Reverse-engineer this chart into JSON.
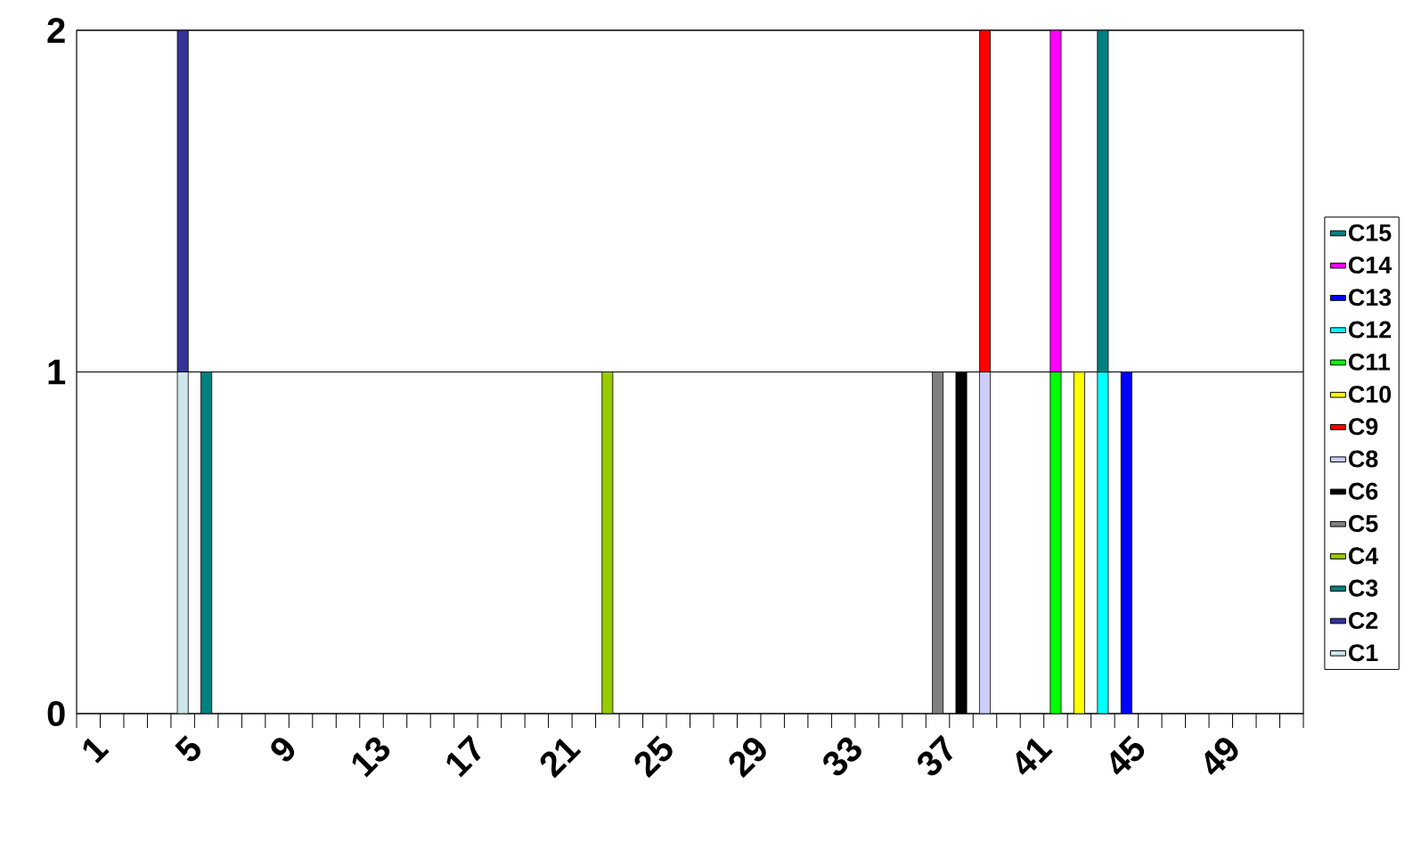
{
  "chart_data": {
    "type": "bar",
    "stacked": true,
    "grid": "y",
    "legend": "right",
    "ylim": [
      0,
      2
    ],
    "yticks": [
      0,
      1,
      2
    ],
    "categories": [
      "1",
      null,
      null,
      null,
      "5",
      null,
      null,
      null,
      "9",
      null,
      null,
      null,
      "13",
      null,
      null,
      null,
      "17",
      null,
      null,
      null,
      "21",
      null,
      null,
      null,
      "25",
      null,
      null,
      null,
      "29",
      null,
      null,
      null,
      "33",
      null,
      null,
      null,
      "37",
      null,
      null,
      null,
      "41",
      null,
      null,
      null,
      "45",
      null,
      null,
      null,
      "49",
      null,
      null,
      null
    ],
    "series": [
      {
        "name": "C1",
        "color": "#cce6ea",
        "values": [
          null,
          null,
          null,
          null,
          1,
          null,
          null,
          null,
          null,
          null,
          null,
          null,
          null,
          null,
          null,
          null,
          null,
          null,
          null,
          null,
          null,
          null,
          null,
          null,
          null,
          null,
          null,
          null,
          null,
          null,
          null,
          null,
          null,
          null,
          null,
          null,
          null,
          null,
          null,
          null,
          null,
          null,
          null,
          null,
          null,
          null,
          null,
          null,
          null,
          null,
          null,
          null
        ]
      },
      {
        "name": "C2",
        "color": "#333399",
        "values": [
          null,
          null,
          null,
          null,
          1,
          null,
          null,
          null,
          null,
          null,
          null,
          null,
          null,
          null,
          null,
          null,
          null,
          null,
          null,
          null,
          null,
          null,
          null,
          null,
          null,
          null,
          null,
          null,
          null,
          null,
          null,
          null,
          null,
          null,
          null,
          null,
          null,
          null,
          null,
          null,
          null,
          null,
          null,
          null,
          null,
          null,
          null,
          null,
          null,
          null,
          null,
          null
        ]
      },
      {
        "name": "C3",
        "color": "#008080",
        "values": [
          null,
          null,
          null,
          null,
          null,
          1,
          null,
          null,
          null,
          null,
          null,
          null,
          null,
          null,
          null,
          null,
          null,
          null,
          null,
          null,
          null,
          null,
          null,
          null,
          null,
          null,
          null,
          null,
          null,
          null,
          null,
          null,
          null,
          null,
          null,
          null,
          null,
          null,
          null,
          null,
          null,
          null,
          null,
          null,
          null,
          null,
          null,
          null,
          null,
          null,
          null,
          null
        ]
      },
      {
        "name": "C4",
        "color": "#99cc00",
        "values": [
          null,
          null,
          null,
          null,
          null,
          null,
          null,
          null,
          null,
          null,
          null,
          null,
          null,
          null,
          null,
          null,
          null,
          null,
          null,
          null,
          null,
          null,
          1,
          null,
          null,
          null,
          null,
          null,
          null,
          null,
          null,
          null,
          null,
          null,
          null,
          null,
          null,
          null,
          null,
          null,
          null,
          null,
          null,
          null,
          null,
          null,
          null,
          null,
          null,
          null,
          null,
          null
        ]
      },
      {
        "name": "C5",
        "color": "#808080",
        "values": [
          null,
          null,
          null,
          null,
          null,
          null,
          null,
          null,
          null,
          null,
          null,
          null,
          null,
          null,
          null,
          null,
          null,
          null,
          null,
          null,
          null,
          null,
          null,
          null,
          null,
          null,
          null,
          null,
          null,
          null,
          null,
          null,
          null,
          null,
          null,
          null,
          1,
          null,
          null,
          null,
          null,
          null,
          null,
          null,
          null,
          null,
          null,
          null,
          null,
          null,
          null,
          null
        ]
      },
      {
        "name": "C6",
        "color": "#000000",
        "values": [
          null,
          null,
          null,
          null,
          null,
          null,
          null,
          null,
          null,
          null,
          null,
          null,
          null,
          null,
          null,
          null,
          null,
          null,
          null,
          null,
          null,
          null,
          null,
          null,
          null,
          null,
          null,
          null,
          null,
          null,
          null,
          null,
          null,
          null,
          null,
          null,
          null,
          1,
          null,
          null,
          null,
          null,
          null,
          null,
          null,
          null,
          null,
          null,
          null,
          null,
          null,
          null
        ]
      },
      {
        "name": "C8",
        "color": "#ccccff",
        "values": [
          null,
          null,
          null,
          null,
          null,
          null,
          null,
          null,
          null,
          null,
          null,
          null,
          null,
          null,
          null,
          null,
          null,
          null,
          null,
          null,
          null,
          null,
          null,
          null,
          null,
          null,
          null,
          null,
          null,
          null,
          null,
          null,
          null,
          null,
          null,
          null,
          null,
          null,
          1,
          null,
          null,
          null,
          null,
          null,
          null,
          null,
          null,
          null,
          null,
          null,
          null,
          null
        ]
      },
      {
        "name": "C9",
        "color": "#ff0000",
        "values": [
          null,
          null,
          null,
          null,
          null,
          null,
          null,
          null,
          null,
          null,
          null,
          null,
          null,
          null,
          null,
          null,
          null,
          null,
          null,
          null,
          null,
          null,
          null,
          null,
          null,
          null,
          null,
          null,
          null,
          null,
          null,
          null,
          null,
          null,
          null,
          null,
          null,
          null,
          1,
          null,
          null,
          null,
          null,
          null,
          null,
          null,
          null,
          null,
          null,
          null,
          null,
          null
        ]
      },
      {
        "name": "C10",
        "color": "#ffff00",
        "values": [
          null,
          null,
          null,
          null,
          null,
          null,
          null,
          null,
          null,
          null,
          null,
          null,
          null,
          null,
          null,
          null,
          null,
          null,
          null,
          null,
          null,
          null,
          null,
          null,
          null,
          null,
          null,
          null,
          null,
          null,
          null,
          null,
          null,
          null,
          null,
          null,
          null,
          null,
          null,
          null,
          null,
          null,
          1,
          null,
          null,
          null,
          null,
          null,
          null,
          null,
          null,
          null
        ]
      },
      {
        "name": "C11",
        "color": "#00ff00",
        "values": [
          null,
          null,
          null,
          null,
          null,
          null,
          null,
          null,
          null,
          null,
          null,
          null,
          null,
          null,
          null,
          null,
          null,
          null,
          null,
          null,
          null,
          null,
          null,
          null,
          null,
          null,
          null,
          null,
          null,
          null,
          null,
          null,
          null,
          null,
          null,
          null,
          null,
          null,
          null,
          null,
          null,
          1,
          null,
          null,
          null,
          null,
          null,
          null,
          null,
          null,
          null,
          null
        ]
      },
      {
        "name": "C12",
        "color": "#00ffff",
        "values": [
          null,
          null,
          null,
          null,
          null,
          null,
          null,
          null,
          null,
          null,
          null,
          null,
          null,
          null,
          null,
          null,
          null,
          null,
          null,
          null,
          null,
          null,
          null,
          null,
          null,
          null,
          null,
          null,
          null,
          null,
          null,
          null,
          null,
          null,
          null,
          null,
          null,
          null,
          null,
          null,
          null,
          null,
          null,
          1,
          null,
          null,
          null,
          null,
          null,
          null,
          null,
          null
        ]
      },
      {
        "name": "C13",
        "color": "#0000ff",
        "values": [
          null,
          null,
          null,
          null,
          null,
          null,
          null,
          null,
          null,
          null,
          null,
          null,
          null,
          null,
          null,
          null,
          null,
          null,
          null,
          null,
          null,
          null,
          null,
          null,
          null,
          null,
          null,
          null,
          null,
          null,
          null,
          null,
          null,
          null,
          null,
          null,
          null,
          null,
          null,
          null,
          null,
          null,
          null,
          null,
          1,
          null,
          null,
          null,
          null,
          null,
          null,
          null
        ]
      },
      {
        "name": "C14",
        "color": "#ff00ff",
        "values": [
          null,
          null,
          null,
          null,
          null,
          null,
          null,
          null,
          null,
          null,
          null,
          null,
          null,
          null,
          null,
          null,
          null,
          null,
          null,
          null,
          null,
          null,
          null,
          null,
          null,
          null,
          null,
          null,
          null,
          null,
          null,
          null,
          null,
          null,
          null,
          null,
          null,
          null,
          null,
          null,
          null,
          1,
          null,
          null,
          null,
          null,
          null,
          null,
          null,
          null,
          null,
          null
        ]
      },
      {
        "name": "C15",
        "color": "#008080",
        "values": [
          null,
          null,
          null,
          null,
          null,
          null,
          null,
          null,
          null,
          null,
          null,
          null,
          null,
          null,
          null,
          null,
          null,
          null,
          null,
          null,
          null,
          null,
          null,
          null,
          null,
          null,
          null,
          null,
          null,
          null,
          null,
          null,
          null,
          null,
          null,
          null,
          null,
          null,
          null,
          null,
          null,
          null,
          null,
          1,
          null,
          null,
          null,
          null,
          null,
          null,
          null,
          null
        ]
      }
    ]
  }
}
